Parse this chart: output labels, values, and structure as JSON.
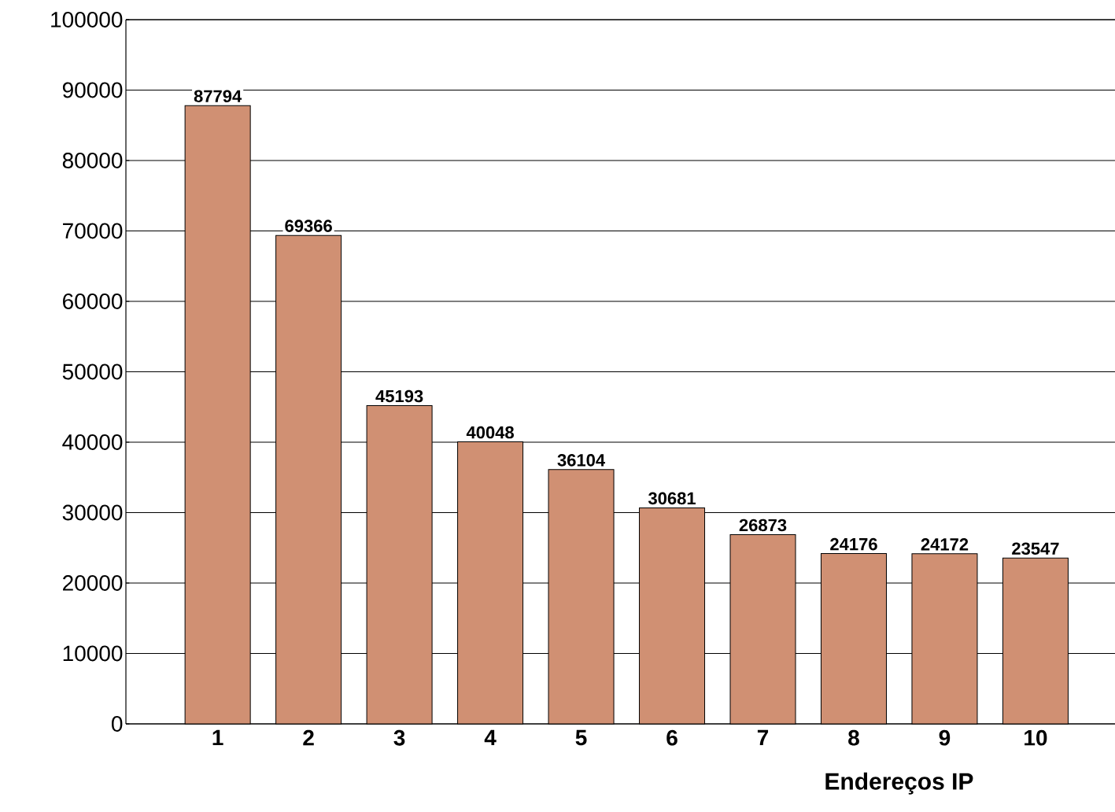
{
  "chart_data": {
    "type": "bar",
    "xlabel": "Endereços IP",
    "categories": [
      "1",
      "2",
      "3",
      "4",
      "5",
      "6",
      "7",
      "8",
      "9",
      "10"
    ],
    "values": [
      87794,
      69366,
      45193,
      40048,
      36104,
      30681,
      26873,
      24176,
      24172,
      23547
    ],
    "color": "#d09073",
    "ylim": [
      0,
      100000
    ],
    "yticks": [
      0,
      10000,
      20000,
      30000,
      40000,
      50000,
      60000,
      70000,
      80000,
      90000,
      100000
    ],
    "grid": "y",
    "data_labels": true
  }
}
